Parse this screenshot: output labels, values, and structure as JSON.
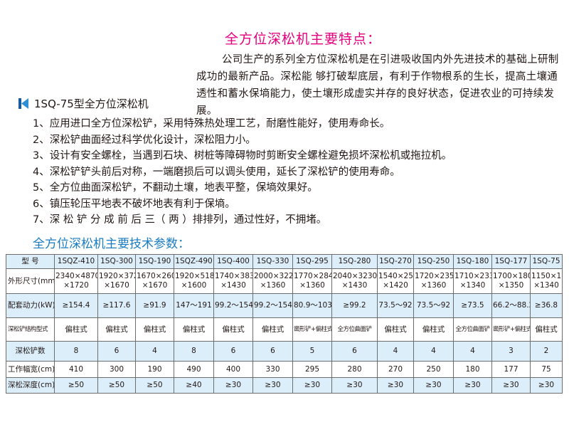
{
  "features": {
    "title": "全方位深松机主要特点：",
    "intro": "公司生产的系列全方位深松机是在引进吸收国内外先进技术的基础上研制成功的最新产品。深松能 够打破犁底层，有利于作物根系的生长，提高土壤通透性和蓄水保墒能力，使土壤形成虚实并存的良好状态，促进农业的可持续发展。"
  },
  "model_heading": {
    "icon": "k-logo-icon",
    "text": "1SQ-75型全方位深松机"
  },
  "feature_list": [
    "1、应用进口全方位深松铲，采用特殊热处理工艺，耐磨性能好，使用寿命长。",
    "2、深松铲曲面经过科学优化设计，深松阻力小。",
    "3、设计有安全螺栓，当遇到石块、树桩等障碍物时剪断安全螺栓避免损坏深松机或拖拉机。",
    "4、深松铲铲头前后对称，一端磨损后可以调头使用，延长了深松铲的使用寿命。",
    "5、全方位曲面深松铲，不翻动土壤，地表平整，保墒效果好。",
    "6、镇压轮压平地表不破坏地表有利于保墒。",
    "7、深 松 铲 分 成 前 后 三（ 两 ）排排列，通过性好，不拥堵。"
  ],
  "params_title": "全方位深松机主要技术参数：",
  "colors": {
    "title_pink": "#e4007f",
    "title_blue": "#1a7cc1",
    "row_blue": "#dbeefa"
  },
  "table": {
    "rows": [
      {
        "label": "型 号",
        "cells": [
          "1SQZ-410",
          "1SQ-300",
          "1SQ-190",
          "1SQZ-490",
          "1SQ-400",
          "1SQ-330",
          "1SQ-295",
          "1SQ-280",
          "1SQ-270",
          "1SQ-250",
          "1SQ-180",
          "1SQ-177",
          "1SQ-75"
        ]
      },
      {
        "label": "外形尺寸(mm)",
        "cells": [
          "2340×4870\n×1720",
          "1920×3720\n×1670",
          "1670×2600\n×1670",
          "1920×5180\n×1600",
          "1740×3830\n×1430",
          "2000×3220\n×1360",
          "1770×2840\n×1360",
          "2040×3230\n×1430",
          "1540×2570\n×1420",
          "1720×2350\n×1360",
          "1710×2330\n×1340",
          "1700×1800\n×1350",
          "1150×1350\n×1340"
        ]
      },
      {
        "label": "配套动力(kW)",
        "cells": [
          "≥154.4",
          "≥117.6",
          "≥91.9",
          "147～191",
          "99.2～154.4",
          "99.2～154.4",
          "80.9～103",
          "≥99.2",
          "73.5～92",
          "73.5～92",
          "≥73.5",
          "66.2～88.2",
          "≥36.8"
        ]
      },
      {
        "label": "深松铲结构型式",
        "cells": [
          "偏柱式",
          "偏柱式",
          "偏柱式",
          "偏柱式",
          "偏柱式",
          "偏柱式",
          "凿形铲+偏柱式",
          "全方位曲面铲",
          "偏柱式",
          "偏柱式",
          "全方位曲面铲",
          "凿形铲+偏柱式",
          "偏柱式"
        ]
      },
      {
        "label": "深松铲数",
        "cells": [
          "8",
          "6",
          "4",
          "8",
          "6",
          "6",
          "5",
          "6",
          "4",
          "4",
          "4",
          "3",
          "2"
        ]
      },
      {
        "label": "工作幅宽(cm)",
        "cells": [
          "410",
          "300",
          "190",
          "490",
          "400",
          "330",
          "295",
          "280",
          "270",
          "250",
          "180",
          "177",
          "75"
        ]
      },
      {
        "label": "深松深度(cm)",
        "cells": [
          "≥50",
          "≥50",
          "≥50",
          "≥40",
          "≥30",
          "≥30",
          "≥30",
          "≥30",
          "≥30",
          "≥30",
          "≥30",
          "≥30",
          "≥30"
        ]
      }
    ]
  }
}
